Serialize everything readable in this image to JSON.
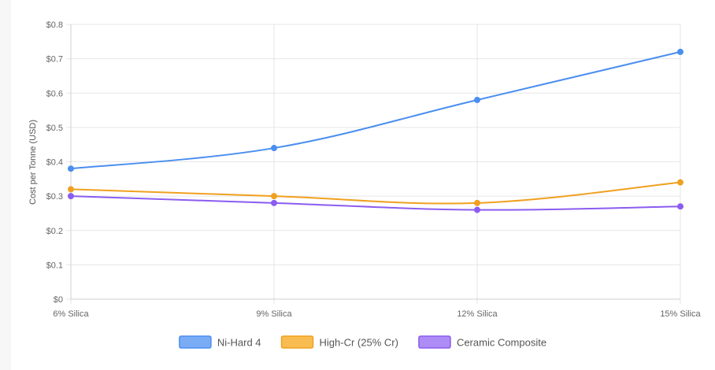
{
  "chart_data": {
    "type": "line",
    "title": "",
    "xlabel": "",
    "ylabel": "Cost per Tonne (USD)",
    "categories": [
      "6% Silica",
      "9% Silica",
      "12% Silica",
      "15% Silica"
    ],
    "ylim": [
      0,
      0.8
    ],
    "yticks": [
      0,
      0.1,
      0.2,
      0.3,
      0.4,
      0.5,
      0.6,
      0.7,
      0.8
    ],
    "ytick_labels": [
      "$0",
      "$0.1",
      "$0.2",
      "$0.3",
      "$0.4",
      "$0.5",
      "$0.6",
      "$0.7",
      "$0.8"
    ],
    "grid": true,
    "legend_position": "bottom",
    "series": [
      {
        "name": "Ni-Hard 4",
        "color": "#4a8ef0",
        "fill": "#7aacf5",
        "values": [
          0.38,
          0.44,
          0.58,
          0.72
        ]
      },
      {
        "name": "High-Cr (25% Cr)",
        "color": "#f0a020",
        "fill": "#f8bc50",
        "values": [
          0.32,
          0.3,
          0.28,
          0.34
        ]
      },
      {
        "name": "Ceramic Composite",
        "color": "#8b5cf0",
        "fill": "#ae8cf5",
        "values": [
          0.3,
          0.28,
          0.26,
          0.27
        ]
      }
    ]
  }
}
